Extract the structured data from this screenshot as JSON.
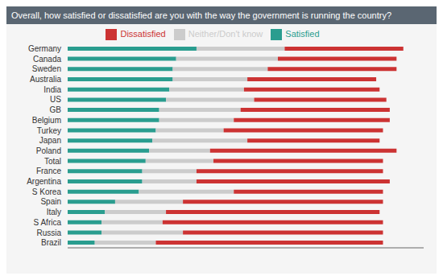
{
  "chart_data": {
    "type": "bar",
    "title": "Overall, how satisfied or dissatisfied are you with the way the government is running the country?",
    "orientation": "horizontal",
    "stacked": true,
    "legend": "top",
    "grid": false,
    "tick_labels": "y",
    "categories": [
      "Germany",
      "Canada",
      "Sweden",
      "Australia",
      "India",
      "US",
      "GB",
      "Belgium",
      "Turkey",
      "Japan",
      "Poland",
      "Total",
      "France",
      "Argentina",
      "S Korea",
      "Spain",
      "Italy",
      "S Africa",
      "Russia",
      "Brazil"
    ],
    "series": [
      {
        "name": "Satisfied",
        "color": "#2a9d8f",
        "values": [
          38,
          32,
          31,
          31,
          30,
          29,
          27,
          27,
          26,
          25,
          24,
          23,
          22,
          22,
          21,
          14,
          11,
          10,
          10,
          8
        ]
      },
      {
        "name": "Neither/Don't know",
        "color": "#cccccc",
        "values": [
          26,
          30,
          28,
          22,
          22,
          26,
          24,
          22,
          20,
          28,
          18,
          20,
          16,
          16,
          28,
          20,
          18,
          18,
          24,
          18
        ]
      },
      {
        "name": "Dissatisfied",
        "color": "#cc3333",
        "values": [
          35,
          35,
          38,
          38,
          40,
          39,
          44,
          46,
          47,
          39,
          55,
          50,
          55,
          57,
          44,
          59,
          63,
          65,
          59,
          67
        ]
      }
    ],
    "xlim": [
      0,
      105
    ]
  }
}
